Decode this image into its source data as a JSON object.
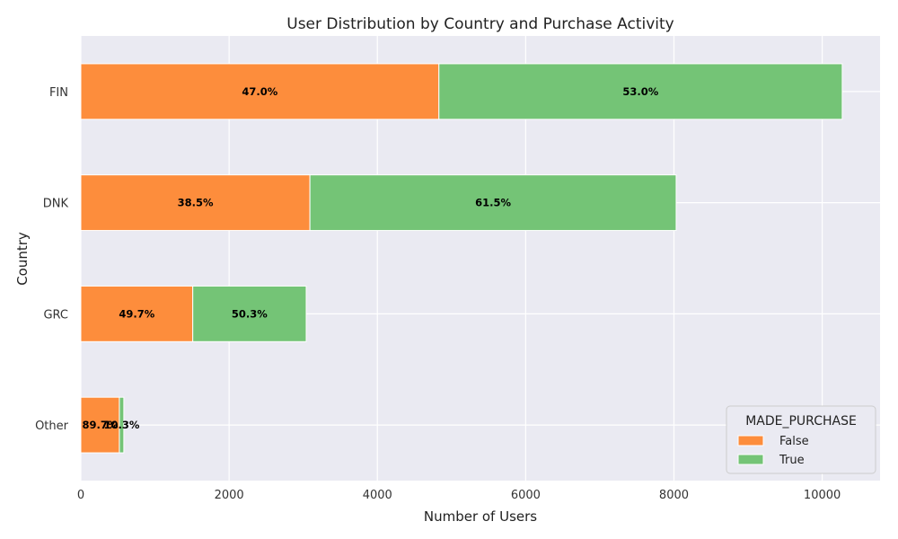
{
  "chart_data": {
    "type": "bar",
    "orientation": "horizontal",
    "stacked": true,
    "title": "User Distribution by Country and Purchase Activity",
    "xlabel": "Number of Users",
    "ylabel": "Country",
    "categories": [
      "FIN",
      "DNK",
      "GRC",
      "Other"
    ],
    "series": [
      {
        "name": "False",
        "color": "#fd8d3c",
        "values": [
          4830,
          3090,
          1510,
          520
        ],
        "labels": [
          "47.0%",
          "38.5%",
          "49.7%",
          "89.7%"
        ]
      },
      {
        "name": "True",
        "color": "#74c476",
        "values": [
          5440,
          4940,
          1530,
          60
        ],
        "labels": [
          "53.0%",
          "61.5%",
          "50.3%",
          "10.3%"
        ]
      }
    ],
    "xlim": [
      0,
      10780
    ],
    "xticks": [
      0,
      2000,
      4000,
      6000,
      8000,
      10000
    ],
    "grid": true,
    "legend": {
      "title": "MADE_PURCHASE",
      "placement": "lower-right"
    }
  }
}
